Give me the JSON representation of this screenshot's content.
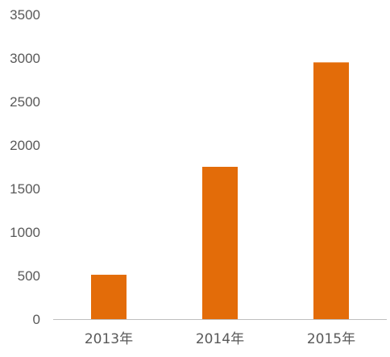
{
  "chart_data": {
    "type": "bar",
    "title": "",
    "xlabel": "",
    "ylabel": "",
    "categories": [
      "2013年",
      "2014年",
      "2015年"
    ],
    "values": [
      510,
      1750,
      2950
    ],
    "ylim": [
      0,
      3500
    ],
    "yticks": [
      0,
      500,
      1000,
      1500,
      2000,
      2500,
      3000,
      3500
    ],
    "grid": false,
    "legend": "none",
    "colors": {
      "bar": "#E36C09",
      "axis": "#BFBFBF",
      "text": "#595959"
    }
  }
}
